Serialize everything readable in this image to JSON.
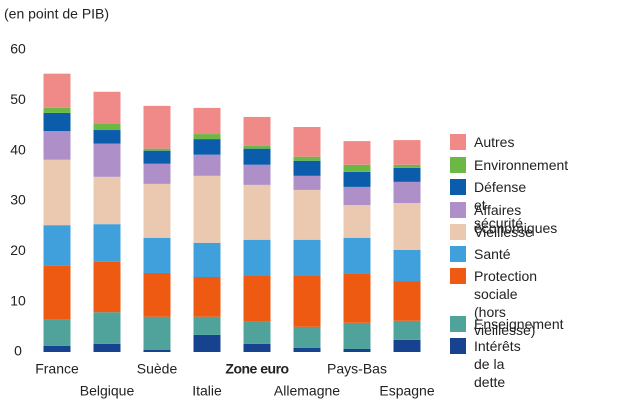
{
  "chart_data": {
    "type": "stacked_bar",
    "y_label": "(en point de PIB)",
    "categories": [
      "France",
      "Belgique",
      "Suède",
      "Italie",
      "Zone euro",
      "Allemagne",
      "Pays-Bas",
      "Espagne"
    ],
    "bold_categories": [
      4
    ],
    "ylim": [
      0,
      60
    ],
    "yticks": [
      0,
      10,
      20,
      30,
      40,
      50,
      60
    ],
    "grid": false,
    "legend": "right",
    "series": [
      {
        "name": "Intérêts de la dette",
        "color": "#17428f",
        "values": [
          1.2,
          1.6,
          0.4,
          3.4,
          1.6,
          0.8,
          0.6,
          2.4
        ]
      },
      {
        "name": "Enseignement",
        "color": "#4fa39b",
        "values": [
          5.2,
          6.3,
          6.6,
          3.6,
          4.4,
          4.2,
          5.2,
          3.8
        ]
      },
      {
        "name": "Protection sociale\n(hors vieillesse)",
        "color": "#ef5a12",
        "values": [
          10.7,
          10.0,
          8.7,
          7.9,
          9.1,
          10.1,
          9.7,
          7.9
        ]
      },
      {
        "name": "Santé",
        "color": "#40a0dc",
        "values": [
          8.1,
          7.5,
          7.0,
          6.8,
          7.2,
          7.2,
          7.2,
          6.2
        ]
      },
      {
        "name": "Vieillesse",
        "color": "#ebc8b0",
        "values": [
          13.0,
          9.4,
          10.7,
          13.3,
          10.9,
          9.9,
          6.5,
          9.3
        ]
      },
      {
        "name": "Affaires économiques",
        "color": "#ae8fc7",
        "values": [
          5.7,
          6.6,
          4.0,
          4.2,
          4.0,
          2.8,
          3.6,
          4.2
        ]
      },
      {
        "name": "Défense et sécurité",
        "color": "#0b5dab",
        "values": [
          3.6,
          2.7,
          2.6,
          3.1,
          3.2,
          3.0,
          3.0,
          2.8
        ]
      },
      {
        "name": "Environnement",
        "color": "#6cb844",
        "values": [
          1.0,
          1.2,
          0.4,
          1.0,
          0.6,
          0.8,
          1.4,
          0.6
        ]
      },
      {
        "name": "Autres",
        "color": "#f08a88",
        "values": [
          6.8,
          6.4,
          8.5,
          5.2,
          5.7,
          5.9,
          4.7,
          4.9
        ]
      }
    ]
  }
}
